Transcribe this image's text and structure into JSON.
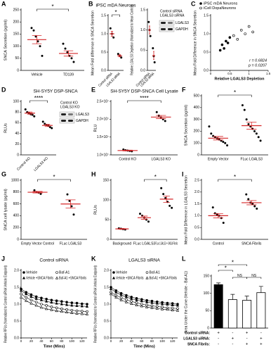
{
  "chart_data": [
    {
      "type": "dot",
      "label": "A",
      "ylabel": "SNCA Secretion (pg/ml)",
      "categories": [
        "Vehicle",
        "TD139"
      ],
      "points": [
        [
          175,
          165,
          140,
          120,
          100,
          60
        ],
        [
          110,
          90,
          75,
          60,
          50,
          35
        ]
      ],
      "means": [
        127,
        70
      ],
      "errors": [
        17,
        11
      ],
      "ylim": [
        0,
        250
      ],
      "yticks": [
        0,
        50,
        100,
        150,
        200,
        250
      ],
      "significance": "*",
      "point_color": "#000000",
      "mean_color": "#d62728"
    },
    {
      "type": "dot",
      "label": "B",
      "title": "iPSC mDA Neurons",
      "ylabel": "Mean Fold difference in SNCA Secretion",
      "categories": [
        "Control siRNA",
        "LGALS3 siRNA"
      ],
      "points": [
        [
          1.15,
          1.0,
          0.9
        ],
        [
          0.45,
          0.4,
          0.35
        ]
      ],
      "means": [
        1.0,
        0.4
      ],
      "errors": [
        0.07,
        0.03
      ],
      "ylim": [
        0,
        1.5
      ],
      "yticks": [
        {
          "value": 0,
          "label": "0.0"
        },
        0.5,
        {
          "value": 1,
          "label": "1.0"
        },
        1.5
      ],
      "significance": "*",
      "point_color": "#000000",
      "mean_color": "#d62728"
    },
    {
      "type": "dot",
      "ylabel": "Relative LGALS3 Depletion (Normalized to Mean Control)",
      "categories": [
        "Control siRNA",
        "LGALS3 siRNA"
      ],
      "points": [
        [
          1.2,
          1.0,
          0.85
        ],
        [
          0.55,
          0.35,
          0.2
        ]
      ],
      "means": [
        1.0,
        0.37
      ],
      "errors": [
        0.1,
        0.1
      ],
      "ylim": [
        0,
        1.5
      ],
      "yticks": [
        {
          "value": 0,
          "label": "0.0"
        },
        0.5,
        {
          "value": 1,
          "label": "1.0"
        },
        1.5
      ],
      "point_color": "#000000",
      "mean_color": "#d62728",
      "blot": {
        "columns": [
          "Control siRNA",
          "LGALS3 siRNA"
        ],
        "rows": [
          "LGALS3",
          "GAPDH"
        ]
      }
    },
    {
      "type": "scatter",
      "label": "C",
      "xlabel": "Relative LGALS3 Depletion",
      "ylabel": "Mean Fold Difference in SNCA Secretion",
      "series": [
        {
          "name": "iPSC mDA Neurons",
          "color": "#000000",
          "marker": "filled",
          "x": [
            0.25,
            0.3,
            0.35,
            0.4,
            0.45,
            0.5
          ],
          "values": [
            0.55,
            0.7,
            0.6,
            0.8,
            0.75,
            0.9
          ]
        },
        {
          "name": "iCell DopaNeurons",
          "color": "#000000",
          "marker": "open",
          "x": [
            0.6,
            0.7,
            0.8,
            0.9,
            1.0,
            1.1
          ],
          "values": [
            0.95,
            0.85,
            1.1,
            1.0,
            1.2,
            1.05
          ]
        }
      ],
      "xlim": [
        0,
        1.5
      ],
      "xticks": [
        0,
        0.5,
        1,
        1.5
      ],
      "ylim": [
        0,
        1.5
      ],
      "yticks": [
        {
          "value": 0,
          "label": "0.0"
        },
        0.5,
        {
          "value": 1,
          "label": "1.0"
        },
        1.5
      ],
      "annotations": [
        "r = 0.6824",
        "p = 0.0207"
      ]
    },
    {
      "type": "dot",
      "label": "D",
      "title": "SH-SY5Y DSP-SNCA",
      "ylabel": "RLUs",
      "categories": [
        "Control KO",
        "LGALS3 KO"
      ],
      "points": [
        [
          85,
          80,
          78,
          76,
          75,
          72
        ],
        [
          62,
          58,
          56,
          55,
          52,
          50
        ]
      ],
      "means": [
        78,
        55
      ],
      "errors": [
        2,
        2
      ],
      "ylim": [
        0,
        100
      ],
      "yticks": [
        0,
        20,
        40,
        60,
        80,
        100
      ],
      "significance": "****",
      "point_color": "#000000",
      "mean_color": "#d62728",
      "blot": {
        "columns": [
          "Control KO",
          "LGALS3 KO"
        ],
        "rows": [
          "LGALS3",
          "GAPDH"
        ]
      }
    },
    {
      "type": "dot",
      "label": "E",
      "title": "SH-SY5Y DSP-SNCA Cell Lysate",
      "ylabel": "RLU",
      "categories": [
        "Control KO",
        "LGALS3 KO"
      ],
      "points": [
        [
          11500000,
          11300000,
          11200000,
          11100000,
          11000000
        ],
        [
          22000000,
          21000000,
          20500000,
          20000000,
          19500000
        ]
      ],
      "means": [
        11220000,
        20600000
      ],
      "errors": [
        100000,
        450000
      ],
      "ylim": [
        10000000,
        25000000
      ],
      "yticks": [
        {
          "value": 10000000,
          "label": "1.0×10⁷"
        },
        {
          "value": 15000000,
          "label": "1.5×10⁷"
        },
        {
          "value": 20000000,
          "label": "2.0×10⁷"
        },
        {
          "value": 25000000,
          "label": "2.5×10⁷"
        }
      ],
      "significance": "****",
      "point_color": "#000000",
      "mean_color": "#d62728"
    },
    {
      "type": "dot",
      "label": "F",
      "ylabel": "SNCA Secretion (pg/ml)",
      "categories": [
        "Empty Vector",
        "FLuc LGALS3"
      ],
      "points": [
        [
          240,
          180,
          160,
          150,
          140,
          130,
          120,
          110,
          100,
          80
        ],
        [
          420,
          380,
          300,
          260,
          240,
          220,
          200,
          180,
          150,
          120
        ]
      ],
      "means": [
        141,
        247
      ],
      "errors": [
        15,
        30
      ],
      "ylim": [
        0,
        500
      ],
      "yticks": [
        0,
        100,
        200,
        300,
        400,
        500
      ],
      "significance": "*",
      "point_color": "#000000",
      "mean_color": "#d62728"
    },
    {
      "type": "dot",
      "label": "G",
      "ylabel": "SNCA cell lysate (pg/ml)",
      "categories": [
        "Empty Vector Control",
        "FLuc LGALS3"
      ],
      "points": [
        [
          830,
          800,
          790,
          770
        ],
        [
          760,
          650,
          560,
          420
        ]
      ],
      "means": [
        797,
        598
      ],
      "errors": [
        13,
        70
      ],
      "ylim": [
        0,
        1000
      ],
      "yticks": [
        0,
        200,
        400,
        600,
        800,
        1000
      ],
      "significance": "*",
      "point_color": "#000000",
      "mean_color": "#d62728"
    },
    {
      "type": "dot",
      "label": "H",
      "ylabel": "RLUs",
      "categories": [
        "Background",
        "FLuc LGALS3",
        "FLuc LGALS3 + SNCA Fibrils"
      ],
      "points": [
        [
          28,
          27,
          26,
          25
        ],
        [
          65,
          60,
          55,
          50,
          45
        ],
        [
          130,
          115,
          105,
          95,
          85,
          80
        ]
      ],
      "means": [
        26.5,
        55,
        102
      ],
      "errors": [
        1,
        4,
        8
      ],
      "ylim": [
        0,
        150
      ],
      "yticks": [
        0,
        50,
        100,
        150
      ],
      "significance": "*",
      "point_color": "#000000",
      "mean_color": "#d62728"
    },
    {
      "type": "dot",
      "label": "I",
      "ylabel": "Mean Fold Difference in LGALS3 Secretion",
      "categories": [
        "Control",
        "SNCA Fibrils"
      ],
      "points": [
        [
          1.35,
          1.1,
          1.05,
          1.0,
          0.9,
          0.7
        ],
        [
          1.9,
          1.7,
          1.55,
          1.5,
          1.4,
          1.3
        ]
      ],
      "means": [
        1.0,
        1.55
      ],
      "errors": [
        0.09,
        0.09
      ],
      "ylim": [
        0,
        2.5
      ],
      "yticks": [
        {
          "value": 0,
          "label": "0.0"
        },
        0.5,
        {
          "value": 1,
          "label": "1.0"
        },
        1.5,
        {
          "value": 2,
          "label": "2.0"
        },
        2.5
      ],
      "significance": "*",
      "point_color": "#000000",
      "mean_color": "#d62728"
    },
    {
      "type": "line",
      "label": "J",
      "title": "Control siRNA",
      "ylabel": "Relative RFUs (Normalized to Control siRNA Vehicle Endpoint)",
      "xlabel": "Time (Mins)",
      "x": [
        0,
        10,
        20,
        30,
        40,
        50,
        60,
        70,
        80,
        90,
        100,
        110,
        120,
        130
      ],
      "xlim": [
        0,
        130
      ],
      "xticks": [
        0,
        20,
        40,
        60,
        80,
        100,
        120
      ],
      "ylim": [
        0,
        2
      ],
      "yticks": [
        {
          "value": 0,
          "label": "0.0"
        },
        0.5,
        {
          "value": 1,
          "label": "1.0"
        },
        1.5,
        {
          "value": 2,
          "label": "2.0"
        }
      ],
      "series": [
        {
          "name": "Vehicle",
          "color": "#000000",
          "marker": "circle",
          "values": [
            1.45,
            1.35,
            1.28,
            1.22,
            1.18,
            1.15,
            1.12,
            1.1,
            1.08,
            1.06,
            1.04,
            1.03,
            1.01,
            1.0
          ]
        },
        {
          "name": "Baf-A1",
          "color": "#000000",
          "marker": "circle-open",
          "values": [
            1.3,
            1.2,
            1.12,
            1.06,
            1.0,
            0.96,
            0.92,
            0.89,
            0.86,
            0.84,
            0.82,
            0.8,
            0.79,
            0.78
          ]
        },
        {
          "name": "Vehicle +SNCA Fibrils",
          "color": "#000000",
          "marker": "triangle",
          "values": [
            1.4,
            1.3,
            1.22,
            1.16,
            1.12,
            1.08,
            1.05,
            1.02,
            1.0,
            0.98,
            0.96,
            0.95,
            0.94,
            0.93
          ]
        },
        {
          "name": "Baf-A1 +SNCA Fibrils",
          "color": "#000000",
          "marker": "triangle-open",
          "values": [
            1.2,
            1.1,
            1.02,
            0.96,
            0.9,
            0.86,
            0.83,
            0.8,
            0.78,
            0.76,
            0.74,
            0.72,
            0.71,
            0.7
          ]
        }
      ]
    },
    {
      "type": "line",
      "label": "K",
      "title": "LGALS3 siRNA",
      "ylabel": "Relative RFUs (Normalized to Control siRNA Vehicle Endpoint)",
      "xlabel": "Time (Mins)",
      "x": [
        0,
        10,
        20,
        30,
        40,
        50,
        60,
        70,
        80,
        90,
        100,
        110,
        120,
        130
      ],
      "xlim": [
        0,
        130
      ],
      "xticks": [
        0,
        20,
        40,
        60,
        80,
        100,
        120
      ],
      "ylim": [
        0,
        2
      ],
      "yticks": [
        {
          "value": 0,
          "label": "0.0"
        },
        0.5,
        {
          "value": 1,
          "label": "1.0"
        },
        1.5,
        {
          "value": 2,
          "label": "2.0"
        }
      ],
      "series": [
        {
          "name": "Vehicle",
          "color": "#000000",
          "marker": "circle",
          "values": [
            1.5,
            1.4,
            1.32,
            1.26,
            1.21,
            1.17,
            1.14,
            1.11,
            1.09,
            1.07,
            1.05,
            1.03,
            1.02,
            1.0
          ]
        },
        {
          "name": "Baf-A1",
          "color": "#000000",
          "marker": "circle-open",
          "values": [
            1.35,
            1.26,
            1.19,
            1.13,
            1.08,
            1.04,
            1.0,
            0.97,
            0.95,
            0.93,
            0.91,
            0.89,
            0.88,
            0.87
          ]
        },
        {
          "name": "Vehicle +SNCA Fibrils",
          "color": "#000000",
          "marker": "triangle",
          "values": [
            1.45,
            1.35,
            1.27,
            1.21,
            1.16,
            1.12,
            1.09,
            1.06,
            1.04,
            1.02,
            1.0,
            0.99,
            0.97,
            0.96
          ]
        },
        {
          "name": "Baf-A1 +SNCA Fibrils",
          "color": "#000000",
          "marker": "triangle-open",
          "values": [
            1.3,
            1.2,
            1.12,
            1.06,
            1.01,
            0.97,
            0.94,
            0.91,
            0.89,
            0.87,
            0.85,
            0.84,
            0.82,
            0.81
          ]
        }
      ]
    },
    {
      "type": "bar",
      "label": "L",
      "ylabel": "Area Under the Curve (Vehicle - Baf-A1)",
      "values": [
        125,
        82,
        80,
        102
      ],
      "errors": [
        5,
        15,
        12,
        18
      ],
      "colors": [
        "#000000",
        "#ffffff",
        "#ffffff",
        "#ffffff"
      ],
      "ylim": [
        0,
        150
      ],
      "yticks": [
        0,
        50,
        100,
        150
      ],
      "significance": [
        "*",
        "*",
        "NS",
        "NS"
      ],
      "conditions": [
        {
          "name": "Control siRNA:",
          "signs": [
            "+",
            "-",
            "+",
            "-"
          ]
        },
        {
          "name": "LGALS3 siRNA:",
          "signs": [
            "-",
            "+",
            "-",
            "+"
          ]
        },
        {
          "name": "SNCA Fibrils:",
          "signs": [
            "-",
            "-",
            "+",
            "+"
          ]
        }
      ]
    }
  ]
}
